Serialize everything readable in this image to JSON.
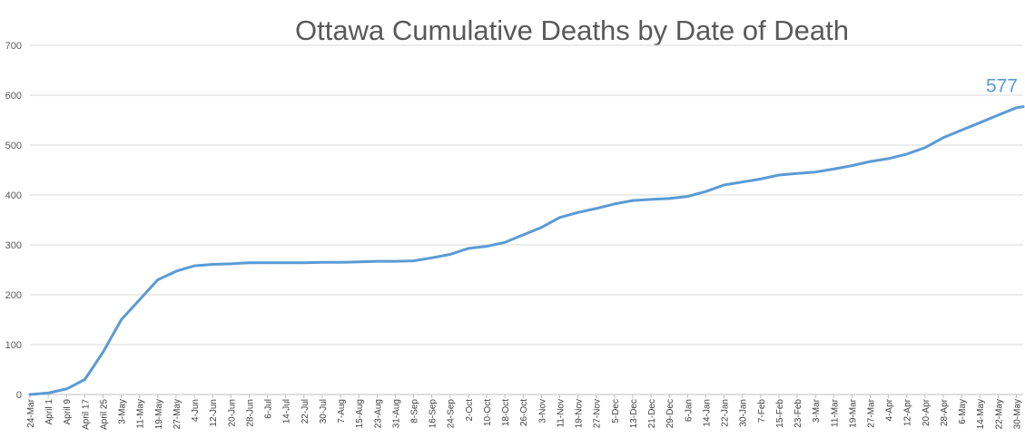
{
  "chart_data": {
    "type": "line",
    "title": "Ottawa Cumulative Deaths by Date of Death",
    "xlabel": "",
    "ylabel": "",
    "ylim": [
      0,
      700
    ],
    "yticks": [
      "0",
      "100",
      "200",
      "300",
      "400",
      "500",
      "600",
      "700"
    ],
    "grid": true,
    "legend": "none",
    "x_start": "24-Mar",
    "x_end": "2-Jun",
    "categories": [
      "24-Mar",
      "April 1",
      "April 9",
      "April 17",
      "April 25",
      "3-May",
      "11-May",
      "19-May",
      "27-May",
      "4-Jun",
      "12-Jun",
      "20-Jun",
      "28-Jun",
      "6-Jul",
      "14-Jul",
      "22-Jul",
      "30-Jul",
      "7-Aug",
      "15-Aug",
      "23-Aug",
      "31-Aug",
      "8-Sep",
      "16-Sep",
      "24-Sep",
      "2-Oct",
      "10-Oct",
      "18-Oct",
      "26-Oct",
      "3-Nov",
      "11-Nov",
      "19-Nov",
      "27-Nov",
      "5-Dec",
      "13-Dec",
      "21-Dec",
      "29-Dec",
      "6-Jan",
      "14-Jan",
      "22-Jan",
      "30-Jan",
      "7-Feb",
      "15-Feb",
      "23-Feb",
      "3-Mar",
      "11-Mar",
      "19-Mar",
      "27-Mar",
      "4-Apr",
      "12-Apr",
      "20-Apr",
      "28-Apr",
      "6-May",
      "14-May",
      "22-May",
      "30-May"
    ],
    "series": [
      {
        "name": "",
        "values": [
          {
            "x": "24-Mar",
            "y": 0
          },
          {
            "x": "April 1",
            "y": 3
          },
          {
            "x": "April 9",
            "y": 11
          },
          {
            "x": "April 17",
            "y": 30
          },
          {
            "x": "April 25",
            "y": 85
          },
          {
            "x": "3-May",
            "y": 150
          },
          {
            "x": "11-May",
            "y": 190
          },
          {
            "x": "19-May",
            "y": 230
          },
          {
            "x": "27-May",
            "y": 247
          },
          {
            "x": "4-Jun",
            "y": 258
          },
          {
            "x": "12-Jun",
            "y": 261
          },
          {
            "x": "20-Jun",
            "y": 262
          },
          {
            "x": "28-Jun",
            "y": 264
          },
          {
            "x": "6-Jul",
            "y": 264
          },
          {
            "x": "14-Jul",
            "y": 264
          },
          {
            "x": "22-Jul",
            "y": 264
          },
          {
            "x": "30-Jul",
            "y": 265
          },
          {
            "x": "7-Aug",
            "y": 265
          },
          {
            "x": "15-Aug",
            "y": 266
          },
          {
            "x": "23-Aug",
            "y": 267
          },
          {
            "x": "31-Aug",
            "y": 267
          },
          {
            "x": "8-Sep",
            "y": 268
          },
          {
            "x": "16-Sep",
            "y": 274
          },
          {
            "x": "24-Sep",
            "y": 281
          },
          {
            "x": "2-Oct",
            "y": 293
          },
          {
            "x": "10-Oct",
            "y": 297
          },
          {
            "x": "18-Oct",
            "y": 305
          },
          {
            "x": "26-Oct",
            "y": 320
          },
          {
            "x": "3-Nov",
            "y": 335
          },
          {
            "x": "11-Nov",
            "y": 355
          },
          {
            "x": "19-Nov",
            "y": 365
          },
          {
            "x": "27-Nov",
            "y": 373
          },
          {
            "x": "5-Dec",
            "y": 382
          },
          {
            "x": "13-Dec",
            "y": 389
          },
          {
            "x": "21-Dec",
            "y": 391
          },
          {
            "x": "29-Dec",
            "y": 393
          },
          {
            "x": "6-Jan",
            "y": 397
          },
          {
            "x": "14-Jan",
            "y": 407
          },
          {
            "x": "22-Jan",
            "y": 420
          },
          {
            "x": "30-Jan",
            "y": 426
          },
          {
            "x": "7-Feb",
            "y": 432
          },
          {
            "x": "15-Feb",
            "y": 440
          },
          {
            "x": "23-Feb",
            "y": 443
          },
          {
            "x": "3-Mar",
            "y": 446
          },
          {
            "x": "11-Mar",
            "y": 452
          },
          {
            "x": "19-Mar",
            "y": 459
          },
          {
            "x": "27-Mar",
            "y": 467
          },
          {
            "x": "4-Apr",
            "y": 473
          },
          {
            "x": "12-Apr",
            "y": 482
          },
          {
            "x": "20-Apr",
            "y": 495
          },
          {
            "x": "28-Apr",
            "y": 515
          },
          {
            "x": "6-May",
            "y": 530
          },
          {
            "x": "14-May",
            "y": 545
          },
          {
            "x": "22-May",
            "y": 560
          },
          {
            "x": "30-May",
            "y": 575
          },
          {
            "x": "2-Jun",
            "y": 577
          }
        ]
      }
    ],
    "annotations": [
      {
        "text": "577",
        "x": "2-Jun",
        "y": 577,
        "color": "#5b9bd5"
      }
    ],
    "colors": {
      "series": "#5b9bd5",
      "grid": "#d9d9d9",
      "title": "#595959",
      "axis_text": "#404040"
    }
  }
}
